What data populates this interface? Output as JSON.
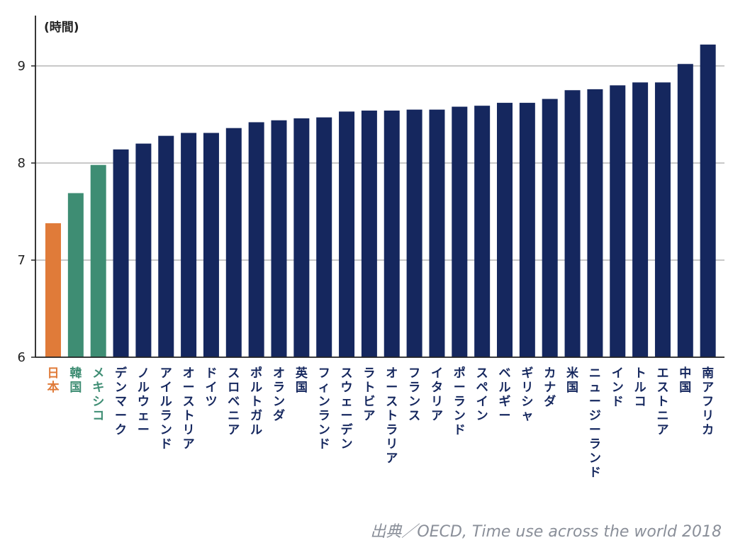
{
  "chart_data": {
    "type": "bar",
    "unit_label": "(時間)",
    "source": "出典／OECD, Time use across the world 2018",
    "ylim": [
      6,
      9.3
    ],
    "yticks": [
      6,
      7,
      8,
      9
    ],
    "grid": true,
    "categories": [
      "日本",
      "韓国",
      "メキシコ",
      "デンマーク",
      "ノルウェー",
      "アイルランド",
      "オーストリア",
      "ドイツ",
      "スロベニア",
      "ポルトガル",
      "オランダ",
      "英国",
      "フィンランド",
      "スウェーデン",
      "ラトビア",
      "オーストラリア",
      "フランス",
      "イタリア",
      "ポーランド",
      "スペイン",
      "ベルギー",
      "ギリシャ",
      "カナダ",
      "米国",
      "ニュージーランド",
      "インド",
      "トルコ",
      "エストニア",
      "中国",
      "南アフリカ"
    ],
    "values": [
      7.38,
      7.69,
      7.98,
      8.14,
      8.2,
      8.28,
      8.31,
      8.31,
      8.36,
      8.42,
      8.44,
      8.46,
      8.47,
      8.53,
      8.54,
      8.54,
      8.55,
      8.55,
      8.58,
      8.59,
      8.62,
      8.62,
      8.66,
      8.75,
      8.76,
      8.8,
      8.83,
      8.83,
      9.02,
      9.22
    ],
    "bar_colors": [
      "#e07b39",
      "#3e8d73",
      "#3e8d73",
      "#15275e",
      "#15275e",
      "#15275e",
      "#15275e",
      "#15275e",
      "#15275e",
      "#15275e",
      "#15275e",
      "#15275e",
      "#15275e",
      "#15275e",
      "#15275e",
      "#15275e",
      "#15275e",
      "#15275e",
      "#15275e",
      "#15275e",
      "#15275e",
      "#15275e",
      "#15275e",
      "#15275e",
      "#15275e",
      "#15275e",
      "#15275e",
      "#15275e",
      "#15275e",
      "#15275e"
    ]
  }
}
